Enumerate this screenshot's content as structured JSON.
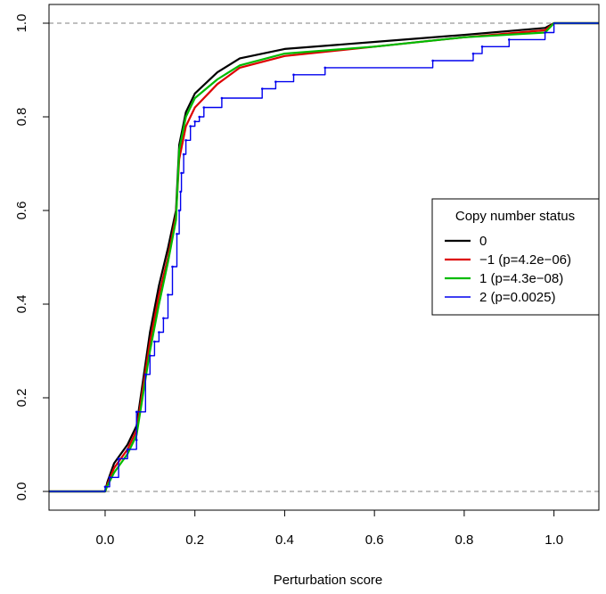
{
  "chart_data": {
    "type": "line",
    "xlabel": "Perturbation score",
    "ylabel": "",
    "xlim": [
      -0.125,
      1.1
    ],
    "ylim": [
      -0.04,
      1.04
    ],
    "x_ticks": [
      {
        "value": 0.0,
        "label": "0.0"
      },
      {
        "value": 0.2,
        "label": "0.2"
      },
      {
        "value": 0.4,
        "label": "0.4"
      },
      {
        "value": 0.6,
        "label": "0.6"
      },
      {
        "value": 0.8,
        "label": "0.8"
      },
      {
        "value": 1.0,
        "label": "1.0"
      }
    ],
    "y_ticks": [
      {
        "value": 0.0,
        "label": "0.0"
      },
      {
        "value": 0.2,
        "label": "0.2"
      },
      {
        "value": 0.4,
        "label": "0.4"
      },
      {
        "value": 0.6,
        "label": "0.6"
      },
      {
        "value": 0.8,
        "label": "0.8"
      },
      {
        "value": 1.0,
        "label": "1.0"
      }
    ],
    "reference_lines": [
      0,
      1
    ],
    "legend": {
      "title": "Copy number status",
      "placement": "right"
    },
    "series": [
      {
        "name": "0",
        "color": "#000000",
        "points": [
          [
            -0.125,
            0
          ],
          [
            0.0,
            0
          ],
          [
            0.005,
            0.02
          ],
          [
            0.02,
            0.06
          ],
          [
            0.05,
            0.1
          ],
          [
            0.07,
            0.14
          ],
          [
            0.1,
            0.34
          ],
          [
            0.12,
            0.44
          ],
          [
            0.14,
            0.52
          ],
          [
            0.158,
            0.6
          ],
          [
            0.165,
            0.74
          ],
          [
            0.18,
            0.81
          ],
          [
            0.2,
            0.85
          ],
          [
            0.25,
            0.895
          ],
          [
            0.3,
            0.925
          ],
          [
            0.4,
            0.945
          ],
          [
            0.6,
            0.96
          ],
          [
            0.8,
            0.975
          ],
          [
            0.98,
            0.99
          ],
          [
            1.0,
            1.0
          ],
          [
            1.1,
            1.0
          ]
        ]
      },
      {
        "name": "−1 (p=4.2e−06)",
        "color": "#dd0000",
        "points": [
          [
            -0.125,
            0
          ],
          [
            0.0,
            0
          ],
          [
            0.005,
            0.015
          ],
          [
            0.02,
            0.05
          ],
          [
            0.05,
            0.09
          ],
          [
            0.07,
            0.13
          ],
          [
            0.1,
            0.32
          ],
          [
            0.12,
            0.42
          ],
          [
            0.14,
            0.5
          ],
          [
            0.158,
            0.59
          ],
          [
            0.165,
            0.71
          ],
          [
            0.18,
            0.78
          ],
          [
            0.2,
            0.82
          ],
          [
            0.25,
            0.87
          ],
          [
            0.3,
            0.905
          ],
          [
            0.4,
            0.93
          ],
          [
            0.6,
            0.95
          ],
          [
            0.8,
            0.97
          ],
          [
            0.98,
            0.985
          ],
          [
            1.0,
            1.0
          ],
          [
            1.1,
            1.0
          ]
        ]
      },
      {
        "name": "1 (p=4.3e−08)",
        "color": "#00bb00",
        "points": [
          [
            -0.125,
            0
          ],
          [
            0.0,
            0
          ],
          [
            0.005,
            0.012
          ],
          [
            0.02,
            0.04
          ],
          [
            0.05,
            0.08
          ],
          [
            0.07,
            0.12
          ],
          [
            0.1,
            0.3
          ],
          [
            0.12,
            0.4
          ],
          [
            0.14,
            0.49
          ],
          [
            0.158,
            0.58
          ],
          [
            0.165,
            0.73
          ],
          [
            0.18,
            0.8
          ],
          [
            0.2,
            0.84
          ],
          [
            0.25,
            0.88
          ],
          [
            0.3,
            0.91
          ],
          [
            0.4,
            0.935
          ],
          [
            0.6,
            0.95
          ],
          [
            0.8,
            0.97
          ],
          [
            0.98,
            0.98
          ],
          [
            1.0,
            1.0
          ],
          [
            1.1,
            1.0
          ]
        ]
      },
      {
        "name": "2 (p=0.0025)",
        "color": "#0000ee",
        "step": true,
        "points": [
          [
            -0.125,
            0
          ],
          [
            0.0,
            0
          ],
          [
            0.0,
            0.01
          ],
          [
            0.01,
            0.03
          ],
          [
            0.03,
            0.07
          ],
          [
            0.05,
            0.09
          ],
          [
            0.07,
            0.11
          ],
          [
            0.07,
            0.17
          ],
          [
            0.09,
            0.25
          ],
          [
            0.1,
            0.29
          ],
          [
            0.11,
            0.32
          ],
          [
            0.12,
            0.34
          ],
          [
            0.13,
            0.37
          ],
          [
            0.14,
            0.42
          ],
          [
            0.15,
            0.48
          ],
          [
            0.16,
            0.55
          ],
          [
            0.165,
            0.6
          ],
          [
            0.168,
            0.64
          ],
          [
            0.17,
            0.68
          ],
          [
            0.175,
            0.72
          ],
          [
            0.18,
            0.75
          ],
          [
            0.19,
            0.78
          ],
          [
            0.2,
            0.79
          ],
          [
            0.21,
            0.8
          ],
          [
            0.22,
            0.82
          ],
          [
            0.26,
            0.84
          ],
          [
            0.35,
            0.86
          ],
          [
            0.38,
            0.875
          ],
          [
            0.42,
            0.89
          ],
          [
            0.49,
            0.905
          ],
          [
            0.73,
            0.92
          ],
          [
            0.82,
            0.935
          ],
          [
            0.84,
            0.95
          ],
          [
            0.9,
            0.965
          ],
          [
            0.98,
            0.98
          ],
          [
            1.0,
            1.0
          ],
          [
            1.1,
            1.0
          ]
        ]
      }
    ]
  }
}
